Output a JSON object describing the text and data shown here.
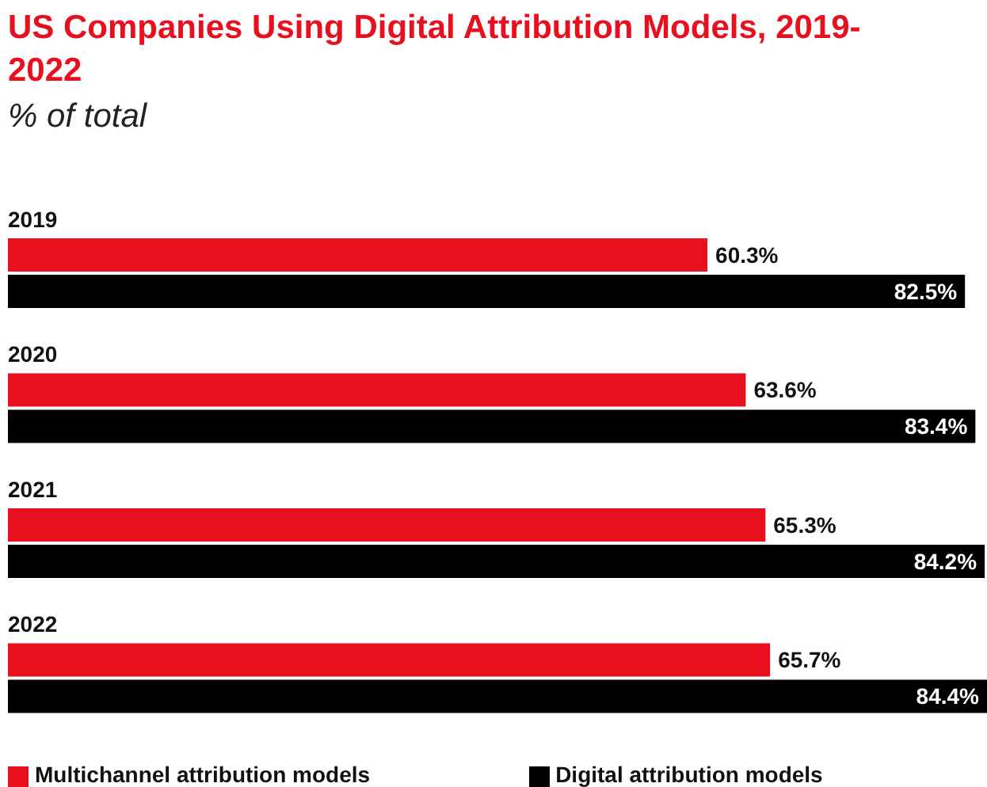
{
  "chart_data": {
    "type": "bar",
    "orientation": "horizontal",
    "title": "US Companies Using Digital Attribution Models, 2019-2022",
    "subtitle": "% of total",
    "categories": [
      "2019",
      "2020",
      "2021",
      "2022"
    ],
    "series": [
      {
        "name": "Multichannel attribution models",
        "color": "#e8101f",
        "values": [
          60.3,
          63.6,
          65.3,
          65.7
        ],
        "value_labels": [
          "60.3%",
          "63.6%",
          "65.3%",
          "65.7%"
        ]
      },
      {
        "name": "Digital attribution models",
        "color": "#000000",
        "values": [
          82.5,
          83.4,
          84.2,
          84.4
        ],
        "value_labels": [
          "82.5%",
          "83.4%",
          "84.2%",
          "84.4%"
        ]
      }
    ],
    "legend": "bottom left"
  }
}
